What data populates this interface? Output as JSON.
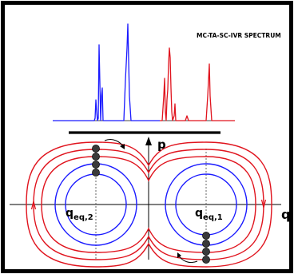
{
  "title": "MC-TA-SC-IVR SPECTRUM",
  "axes": {
    "p_label": "p",
    "q_label": "q",
    "eq2_base": "q",
    "eq2_sub": "eq,2",
    "eq1_base": "q",
    "eq1_sub": "eq,1"
  },
  "colors": {
    "border": "#000000",
    "spectrum_left": "#1a1aff",
    "spectrum_right": "#e0141e",
    "separatrix_orbits": "#e0141e",
    "inner_orbits": "#1a1aff",
    "axes": "#000000",
    "points": "#3a3a3a"
  },
  "icons": {
    "top_arrow": "curved-arrow-icon",
    "bottom_arrow": "curved-arrow-icon"
  }
}
